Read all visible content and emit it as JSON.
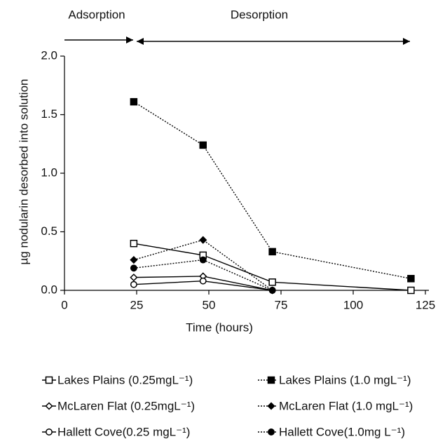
{
  "chart_data": {
    "type": "line",
    "xlabel": "Time (hours)",
    "ylabel": "µg nodularin desorbed into solution",
    "annotations": [
      "Adsorption",
      "Desorption"
    ],
    "x": [
      24,
      48,
      72,
      120
    ],
    "xlim": [
      0,
      125
    ],
    "xticks": [
      0,
      25,
      50,
      75,
      100,
      125
    ],
    "ylim": [
      0,
      2.0
    ],
    "yticks": [
      {
        "value": 0,
        "label": "0.0"
      },
      0.5,
      {
        "value": 1,
        "label": "1.0"
      },
      1.5,
      {
        "value": 2,
        "label": "2.0"
      }
    ],
    "series": [
      {
        "name": "Lakes Plains (0.25mgL⁻¹)",
        "color": "#000000",
        "marker": "square",
        "filled": false,
        "linestyle": "solid",
        "values": [
          0.4,
          0.3,
          0.07,
          0.0
        ]
      },
      {
        "name": "Lakes Plains (1.0 mgL⁻¹)",
        "color": "#000000",
        "marker": "square",
        "filled": true,
        "linestyle": "dotted",
        "values": [
          1.61,
          1.24,
          0.33,
          0.1
        ]
      },
      {
        "name": "McLaren Flat (0.25mgL⁻¹)",
        "color": "#000000",
        "marker": "diamond",
        "filled": false,
        "linestyle": "solid",
        "values": [
          0.11,
          0.12,
          0.0,
          null
        ]
      },
      {
        "name": "McLaren Flat (1.0 mgL⁻¹)",
        "color": "#000000",
        "marker": "diamond",
        "filled": true,
        "linestyle": "dotted",
        "values": [
          0.26,
          0.43,
          0.0,
          null
        ]
      },
      {
        "name": "Hallett Cove(0.25 mgL⁻¹)",
        "color": "#000000",
        "marker": "circle",
        "filled": false,
        "linestyle": "solid",
        "values": [
          0.05,
          0.08,
          0.0,
          null
        ]
      },
      {
        "name": "Hallett Cove(1.0mg L⁻¹)",
        "color": "#000000",
        "marker": "circle",
        "filled": true,
        "linestyle": "dotted",
        "values": [
          0.19,
          0.26,
          0.0,
          null
        ]
      }
    ]
  }
}
